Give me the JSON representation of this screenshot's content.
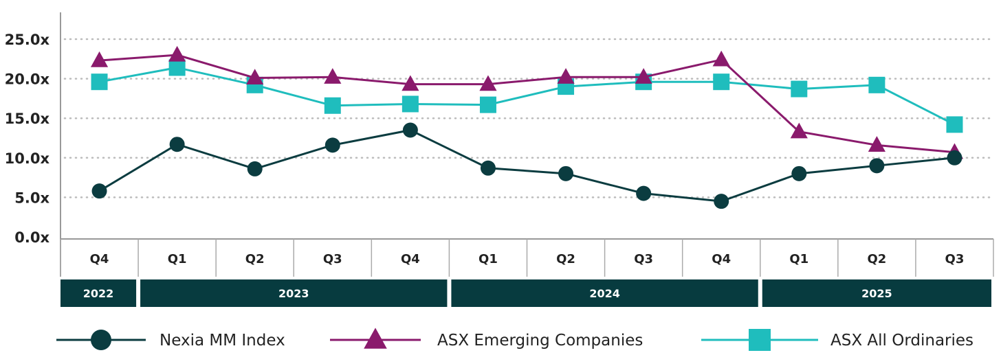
{
  "chart_data": {
    "type": "line",
    "title": "",
    "xlabel": "",
    "ylabel": "",
    "ylim": [
      0,
      25
    ],
    "yticks": [
      "0.0x",
      "5.0x",
      "10.0x",
      "15.0x",
      "20.0x",
      "25.0x"
    ],
    "ytick_values": [
      0,
      5,
      10,
      15,
      20,
      25
    ],
    "grid": "horizontal dotted",
    "categories": [
      "Q4",
      "Q1",
      "Q2",
      "Q3",
      "Q4",
      "Q1",
      "Q2",
      "Q3",
      "Q4",
      "Q1",
      "Q2",
      "Q3"
    ],
    "years": [
      {
        "label": "2022",
        "span": 1
      },
      {
        "label": "2023",
        "span": 4
      },
      {
        "label": "2024",
        "span": 4
      },
      {
        "label": "2025",
        "span": 3
      }
    ],
    "legend_position": "bottom",
    "series": [
      {
        "name": "Nexia MM Index",
        "marker": "circle",
        "color": "#0b3c40",
        "values": [
          5.8,
          11.7,
          8.6,
          11.6,
          13.5,
          8.7,
          8.0,
          5.5,
          4.5,
          8.0,
          9.0,
          10.0
        ]
      },
      {
        "name": "ASX Emerging Companies",
        "marker": "triangle",
        "color": "#8a1a6c",
        "values": [
          22.3,
          23.0,
          20.1,
          20.2,
          19.3,
          19.3,
          20.2,
          20.2,
          22.4,
          13.3,
          11.6,
          10.7
        ]
      },
      {
        "name": "ASX All Ordinaries",
        "marker": "square",
        "color": "#1fbdbd",
        "values": [
          19.6,
          21.4,
          19.2,
          16.6,
          16.8,
          16.7,
          19.0,
          19.6,
          19.6,
          18.7,
          19.2,
          14.2
        ]
      }
    ]
  }
}
